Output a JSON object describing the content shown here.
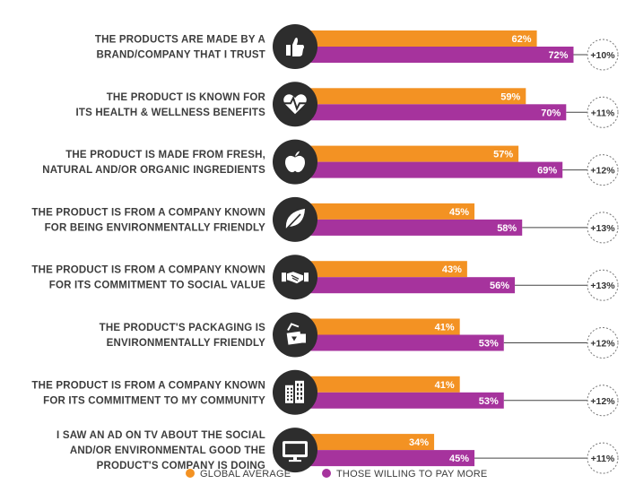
{
  "chart_data": {
    "type": "bar",
    "orientation": "horizontal",
    "categories": [
      "THE PRODUCTS ARE MADE BY A|BRAND/COMPANY THAT I TRUST",
      "THE PRODUCT IS KNOWN FOR|ITS HEALTH & WELLNESS BENEFITS",
      "THE PRODUCT IS MADE FROM FRESH,|NATURAL AND/OR ORGANIC INGREDIENTS",
      "THE PRODUCT IS FROM A COMPANY KNOWN|FOR BEING ENVIRONMENTALLY FRIENDLY",
      "THE PRODUCT IS FROM A COMPANY KNOWN|FOR ITS COMMITMENT TO SOCIAL VALUE",
      "THE PRODUCT'S PACKAGING IS|ENVIRONMENTALLY FRIENDLY",
      "THE PRODUCT IS FROM A COMPANY KNOWN|FOR ITS COMMITMENT TO MY COMMUNITY",
      "I SAW AN AD ON TV ABOUT THE SOCIAL|AND/OR ENVIRONMENTAL GOOD THE|PRODUCT'S COMPANY IS DOING"
    ],
    "icons": [
      "thumbs-up-icon",
      "heart-pulse-icon",
      "apple-icon",
      "leaf-icon",
      "handshake-icon",
      "recycle-packaging-icon",
      "buildings-icon",
      "tv-icon"
    ],
    "series": [
      {
        "name": "GLOBAL AVERAGE",
        "color": "#f39223",
        "values": [
          62,
          59,
          57,
          45,
          43,
          41,
          41,
          34
        ]
      },
      {
        "name": "THOSE WILLING TO PAY MORE",
        "color": "#a6339d",
        "values": [
          72,
          70,
          69,
          58,
          56,
          53,
          53,
          45
        ]
      }
    ],
    "value_labels": {
      "global": [
        "62%",
        "59%",
        "57%",
        "45%",
        "43%",
        "41%",
        "41%",
        "34%"
      ],
      "pay_more": [
        "72%",
        "70%",
        "69%",
        "58%",
        "56%",
        "53%",
        "53%",
        "45%"
      ]
    },
    "differences": [
      "+10%",
      "+11%",
      "+12%",
      "+13%",
      "+13%",
      "+12%",
      "+12%",
      "+11%"
    ],
    "xlim": [
      0,
      100
    ],
    "grid": false,
    "legend_placement": "bottom-center",
    "title": "",
    "xlabel": "",
    "ylabel": ""
  }
}
